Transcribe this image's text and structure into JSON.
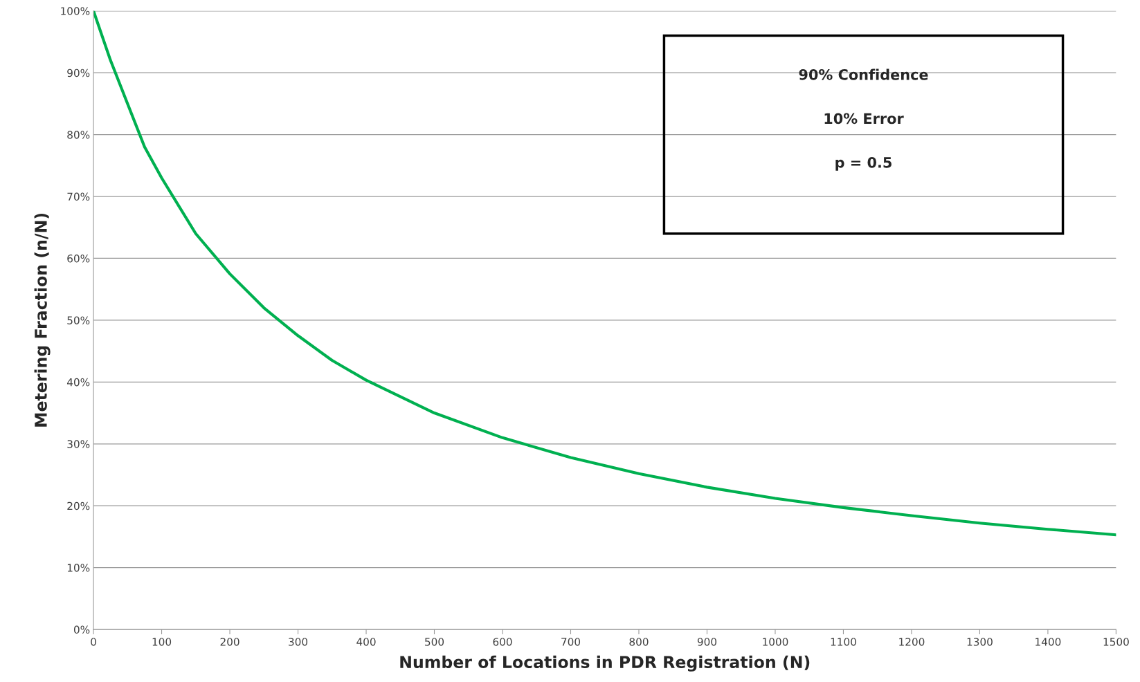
{
  "chart_data": {
    "type": "line",
    "xlabel": "Number of Locations in PDR Registration (N)",
    "ylabel": "Metering Fraction (n/N)",
    "annotations": [
      "90% Confidence",
      "10% Error",
      "p = 0.5"
    ],
    "x": [
      0,
      25,
      50,
      75,
      100,
      150,
      200,
      250,
      300,
      350,
      400,
      500,
      600,
      700,
      800,
      900,
      1000,
      1100,
      1200,
      1300,
      1400,
      1500
    ],
    "series": [
      {
        "color": "#00b050",
        "values": [
          100,
          92,
          85,
          78,
          73,
          64,
          57.5,
          52,
          47.5,
          43.5,
          40.3,
          35,
          31,
          27.8,
          25.2,
          23,
          21.2,
          19.7,
          18.4,
          17.2,
          16.2,
          15.3
        ]
      }
    ],
    "xlim": [
      0,
      1500
    ],
    "xticks": [
      0,
      100,
      200,
      300,
      400,
      500,
      600,
      700,
      800,
      900,
      1000,
      1100,
      1200,
      1300,
      1400,
      1500
    ],
    "ylim": [
      0,
      100
    ],
    "yticks": [
      {
        "value": 0,
        "label": "0%"
      },
      {
        "value": 10,
        "label": "10%"
      },
      {
        "value": 20,
        "label": "20%"
      },
      {
        "value": 30,
        "label": "30%"
      },
      {
        "value": 40,
        "label": "40%"
      },
      {
        "value": 50,
        "label": "50%"
      },
      {
        "value": 60,
        "label": "60%"
      },
      {
        "value": 70,
        "label": "70%"
      },
      {
        "value": 80,
        "label": "80%"
      },
      {
        "value": 90,
        "label": "90%"
      },
      {
        "value": 100,
        "label": "100%"
      }
    ],
    "grid": "y",
    "marker": "none",
    "line_style": "solid"
  }
}
